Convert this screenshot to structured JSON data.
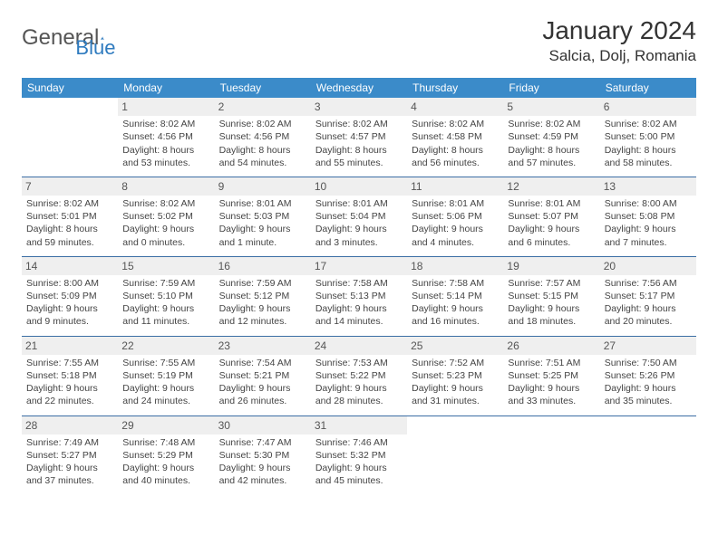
{
  "logo": {
    "text_gray": "General",
    "text_blue": "Blue"
  },
  "title": "January 2024",
  "location": "Salcia, Dolj, Romania",
  "colors": {
    "header_bg": "#3b8bc9",
    "header_text": "#ffffff",
    "row_divider": "#3b6ea5",
    "daynum_bg": "#efefef",
    "daynum_text": "#555555",
    "body_text": "#444444",
    "logo_blue": "#2f7bbf"
  },
  "weekdays": [
    "Sunday",
    "Monday",
    "Tuesday",
    "Wednesday",
    "Thursday",
    "Friday",
    "Saturday"
  ],
  "weeks": [
    [
      {
        "day": "",
        "sunrise": "",
        "sunset": "",
        "daylight1": "",
        "daylight2": ""
      },
      {
        "day": "1",
        "sunrise": "Sunrise: 8:02 AM",
        "sunset": "Sunset: 4:56 PM",
        "daylight1": "Daylight: 8 hours",
        "daylight2": "and 53 minutes."
      },
      {
        "day": "2",
        "sunrise": "Sunrise: 8:02 AM",
        "sunset": "Sunset: 4:56 PM",
        "daylight1": "Daylight: 8 hours",
        "daylight2": "and 54 minutes."
      },
      {
        "day": "3",
        "sunrise": "Sunrise: 8:02 AM",
        "sunset": "Sunset: 4:57 PM",
        "daylight1": "Daylight: 8 hours",
        "daylight2": "and 55 minutes."
      },
      {
        "day": "4",
        "sunrise": "Sunrise: 8:02 AM",
        "sunset": "Sunset: 4:58 PM",
        "daylight1": "Daylight: 8 hours",
        "daylight2": "and 56 minutes."
      },
      {
        "day": "5",
        "sunrise": "Sunrise: 8:02 AM",
        "sunset": "Sunset: 4:59 PM",
        "daylight1": "Daylight: 8 hours",
        "daylight2": "and 57 minutes."
      },
      {
        "day": "6",
        "sunrise": "Sunrise: 8:02 AM",
        "sunset": "Sunset: 5:00 PM",
        "daylight1": "Daylight: 8 hours",
        "daylight2": "and 58 minutes."
      }
    ],
    [
      {
        "day": "7",
        "sunrise": "Sunrise: 8:02 AM",
        "sunset": "Sunset: 5:01 PM",
        "daylight1": "Daylight: 8 hours",
        "daylight2": "and 59 minutes."
      },
      {
        "day": "8",
        "sunrise": "Sunrise: 8:02 AM",
        "sunset": "Sunset: 5:02 PM",
        "daylight1": "Daylight: 9 hours",
        "daylight2": "and 0 minutes."
      },
      {
        "day": "9",
        "sunrise": "Sunrise: 8:01 AM",
        "sunset": "Sunset: 5:03 PM",
        "daylight1": "Daylight: 9 hours",
        "daylight2": "and 1 minute."
      },
      {
        "day": "10",
        "sunrise": "Sunrise: 8:01 AM",
        "sunset": "Sunset: 5:04 PM",
        "daylight1": "Daylight: 9 hours",
        "daylight2": "and 3 minutes."
      },
      {
        "day": "11",
        "sunrise": "Sunrise: 8:01 AM",
        "sunset": "Sunset: 5:06 PM",
        "daylight1": "Daylight: 9 hours",
        "daylight2": "and 4 minutes."
      },
      {
        "day": "12",
        "sunrise": "Sunrise: 8:01 AM",
        "sunset": "Sunset: 5:07 PM",
        "daylight1": "Daylight: 9 hours",
        "daylight2": "and 6 minutes."
      },
      {
        "day": "13",
        "sunrise": "Sunrise: 8:00 AM",
        "sunset": "Sunset: 5:08 PM",
        "daylight1": "Daylight: 9 hours",
        "daylight2": "and 7 minutes."
      }
    ],
    [
      {
        "day": "14",
        "sunrise": "Sunrise: 8:00 AM",
        "sunset": "Sunset: 5:09 PM",
        "daylight1": "Daylight: 9 hours",
        "daylight2": "and 9 minutes."
      },
      {
        "day": "15",
        "sunrise": "Sunrise: 7:59 AM",
        "sunset": "Sunset: 5:10 PM",
        "daylight1": "Daylight: 9 hours",
        "daylight2": "and 11 minutes."
      },
      {
        "day": "16",
        "sunrise": "Sunrise: 7:59 AM",
        "sunset": "Sunset: 5:12 PM",
        "daylight1": "Daylight: 9 hours",
        "daylight2": "and 12 minutes."
      },
      {
        "day": "17",
        "sunrise": "Sunrise: 7:58 AM",
        "sunset": "Sunset: 5:13 PM",
        "daylight1": "Daylight: 9 hours",
        "daylight2": "and 14 minutes."
      },
      {
        "day": "18",
        "sunrise": "Sunrise: 7:58 AM",
        "sunset": "Sunset: 5:14 PM",
        "daylight1": "Daylight: 9 hours",
        "daylight2": "and 16 minutes."
      },
      {
        "day": "19",
        "sunrise": "Sunrise: 7:57 AM",
        "sunset": "Sunset: 5:15 PM",
        "daylight1": "Daylight: 9 hours",
        "daylight2": "and 18 minutes."
      },
      {
        "day": "20",
        "sunrise": "Sunrise: 7:56 AM",
        "sunset": "Sunset: 5:17 PM",
        "daylight1": "Daylight: 9 hours",
        "daylight2": "and 20 minutes."
      }
    ],
    [
      {
        "day": "21",
        "sunrise": "Sunrise: 7:55 AM",
        "sunset": "Sunset: 5:18 PM",
        "daylight1": "Daylight: 9 hours",
        "daylight2": "and 22 minutes."
      },
      {
        "day": "22",
        "sunrise": "Sunrise: 7:55 AM",
        "sunset": "Sunset: 5:19 PM",
        "daylight1": "Daylight: 9 hours",
        "daylight2": "and 24 minutes."
      },
      {
        "day": "23",
        "sunrise": "Sunrise: 7:54 AM",
        "sunset": "Sunset: 5:21 PM",
        "daylight1": "Daylight: 9 hours",
        "daylight2": "and 26 minutes."
      },
      {
        "day": "24",
        "sunrise": "Sunrise: 7:53 AM",
        "sunset": "Sunset: 5:22 PM",
        "daylight1": "Daylight: 9 hours",
        "daylight2": "and 28 minutes."
      },
      {
        "day": "25",
        "sunrise": "Sunrise: 7:52 AM",
        "sunset": "Sunset: 5:23 PM",
        "daylight1": "Daylight: 9 hours",
        "daylight2": "and 31 minutes."
      },
      {
        "day": "26",
        "sunrise": "Sunrise: 7:51 AM",
        "sunset": "Sunset: 5:25 PM",
        "daylight1": "Daylight: 9 hours",
        "daylight2": "and 33 minutes."
      },
      {
        "day": "27",
        "sunrise": "Sunrise: 7:50 AM",
        "sunset": "Sunset: 5:26 PM",
        "daylight1": "Daylight: 9 hours",
        "daylight2": "and 35 minutes."
      }
    ],
    [
      {
        "day": "28",
        "sunrise": "Sunrise: 7:49 AM",
        "sunset": "Sunset: 5:27 PM",
        "daylight1": "Daylight: 9 hours",
        "daylight2": "and 37 minutes."
      },
      {
        "day": "29",
        "sunrise": "Sunrise: 7:48 AM",
        "sunset": "Sunset: 5:29 PM",
        "daylight1": "Daylight: 9 hours",
        "daylight2": "and 40 minutes."
      },
      {
        "day": "30",
        "sunrise": "Sunrise: 7:47 AM",
        "sunset": "Sunset: 5:30 PM",
        "daylight1": "Daylight: 9 hours",
        "daylight2": "and 42 minutes."
      },
      {
        "day": "31",
        "sunrise": "Sunrise: 7:46 AM",
        "sunset": "Sunset: 5:32 PM",
        "daylight1": "Daylight: 9 hours",
        "daylight2": "and 45 minutes."
      },
      {
        "day": "",
        "sunrise": "",
        "sunset": "",
        "daylight1": "",
        "daylight2": ""
      },
      {
        "day": "",
        "sunrise": "",
        "sunset": "",
        "daylight1": "",
        "daylight2": ""
      },
      {
        "day": "",
        "sunrise": "",
        "sunset": "",
        "daylight1": "",
        "daylight2": ""
      }
    ]
  ]
}
